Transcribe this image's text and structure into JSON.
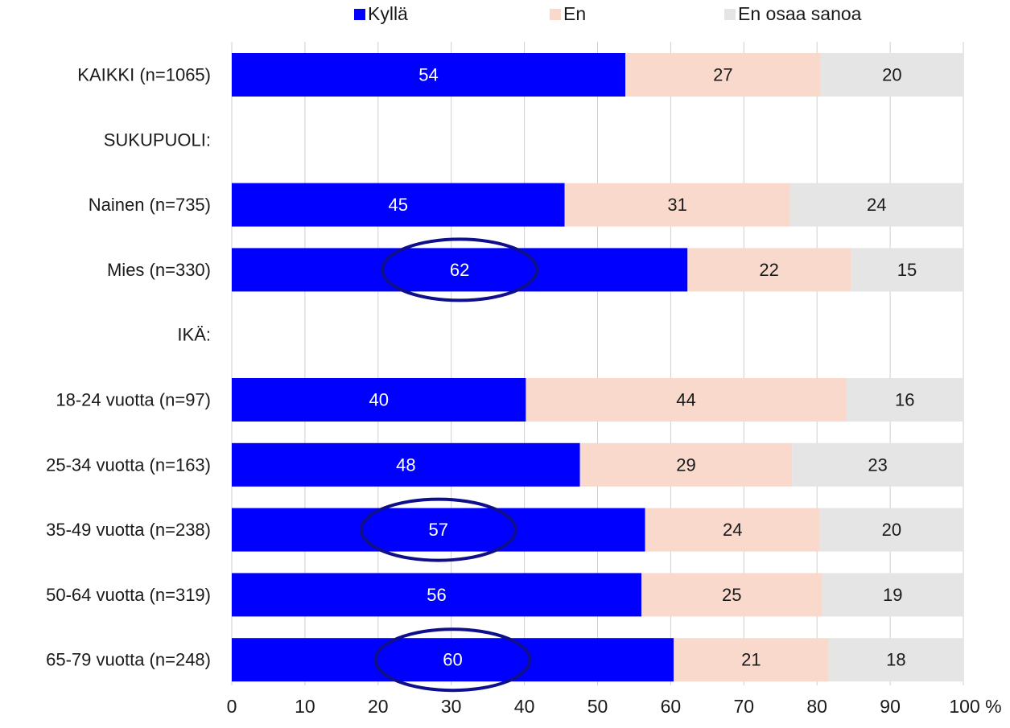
{
  "chart_data": {
    "type": "bar",
    "orientation": "horizontal",
    "stacked": true,
    "categories": [
      "KAIKKI (n=1065)",
      "SUKUPUOLI:",
      "Nainen (n=735)",
      "Mies (n=330)",
      "IKÄ:",
      "18-24 vuotta (n=97)",
      "25-34 vuotta (n=163)",
      "35-49 vuotta (n=238)",
      "50-64 vuotta (n=319)",
      "65-79 vuotta (n=248)"
    ],
    "series": [
      {
        "name": "Kyllä",
        "color": "#0000ff",
        "label_color": "#ffffff",
        "values": [
          54,
          null,
          45,
          62,
          null,
          40,
          48,
          57,
          56,
          60
        ],
        "bar_values": [
          53.8,
          null,
          45.5,
          62.3,
          null,
          40.2,
          47.6,
          56.5,
          56.0,
          60.4
        ]
      },
      {
        "name": "En",
        "color": "#f9d9cc",
        "label_color": "#1a1a1a",
        "values": [
          27,
          null,
          31,
          22,
          null,
          44,
          29,
          24,
          25,
          21
        ],
        "bar_values": [
          26.7,
          null,
          30.8,
          22.3,
          null,
          43.8,
          29.0,
          23.9,
          24.7,
          21.2
        ]
      },
      {
        "name": "En osaa sanoa",
        "color": "#e5e5e5",
        "label_color": "#1a1a1a",
        "values": [
          20,
          null,
          24,
          15,
          null,
          16,
          23,
          20,
          19,
          18
        ],
        "bar_values": [
          19.5,
          null,
          23.7,
          15.4,
          null,
          16.0,
          23.4,
          19.6,
          19.3,
          18.4
        ]
      }
    ],
    "xlim": [
      0,
      100
    ],
    "x_ticks": [
      "0",
      "10",
      "20",
      "30",
      "40",
      "50",
      "60",
      "70",
      "80",
      "90",
      "100 %"
    ],
    "grid": true,
    "legend_position": "top",
    "highlighted_categories": [
      "Mies (n=330)",
      "35-49 vuotta (n=238)",
      "65-79 vuotta (n=248)"
    ],
    "highlight_color": "#0f0f8c"
  }
}
